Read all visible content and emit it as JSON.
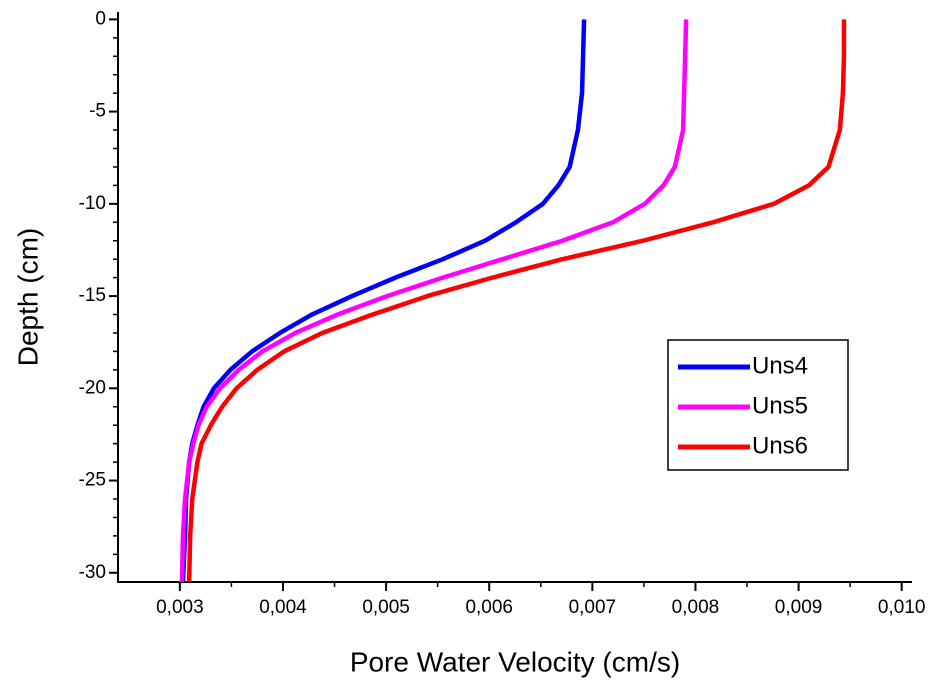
{
  "chart_data": {
    "type": "line",
    "x_label": "Pore Water Velocity (cm/s)",
    "y_label": "Depth (cm)",
    "xlim": [
      0.0024,
      0.0101
    ],
    "ylim": [
      -30.5,
      0.4
    ],
    "xticks": [
      {
        "value": 0.003,
        "label": "0,003"
      },
      {
        "value": 0.004,
        "label": "0,004"
      },
      {
        "value": 0.005,
        "label": "0,005"
      },
      {
        "value": 0.006,
        "label": "0,006"
      },
      {
        "value": 0.007,
        "label": "0,007"
      },
      {
        "value": 0.008,
        "label": "0,008"
      },
      {
        "value": 0.009,
        "label": "0,009"
      },
      {
        "value": 0.01,
        "label": "0,010"
      }
    ],
    "yticks": [
      0,
      -5,
      -10,
      -15,
      -20,
      -25,
      -30
    ],
    "legend": "lower right",
    "y": [
      0,
      -2,
      -4,
      -6,
      -8,
      -9,
      -10,
      -11,
      -12,
      -13,
      -14,
      -15,
      -16,
      -17,
      -18,
      -19,
      -20,
      -21,
      -22,
      -23,
      -24,
      -26,
      -28,
      -30.5
    ],
    "series": [
      {
        "name": "Uns4",
        "color": "#0000ff",
        "values": [
          0.00692,
          0.00691,
          0.0069,
          0.00686,
          0.00678,
          0.00667,
          0.00652,
          0.00626,
          0.00596,
          0.00555,
          0.00509,
          0.00467,
          0.00428,
          0.00397,
          0.0037,
          0.00349,
          0.00333,
          0.00323,
          0.00317,
          0.00312,
          0.00309,
          0.00306,
          0.00305,
          0.00303
        ]
      },
      {
        "name": "Uns5",
        "color": "#ff00ff",
        "values": [
          0.00791,
          0.0079,
          0.00789,
          0.00788,
          0.0078,
          0.00769,
          0.00751,
          0.0072,
          0.00671,
          0.00613,
          0.00555,
          0.00501,
          0.00453,
          0.00412,
          0.0038,
          0.00357,
          0.00339,
          0.00326,
          0.00318,
          0.00313,
          0.00309,
          0.00305,
          0.00303,
          0.00302
        ]
      },
      {
        "name": "Uns6",
        "color": "#ff0000",
        "values": [
          0.00944,
          0.00944,
          0.00943,
          0.0094,
          0.00929,
          0.0091,
          0.00876,
          0.00817,
          0.00749,
          0.00671,
          0.00603,
          0.0054,
          0.00487,
          0.00438,
          0.00401,
          0.00375,
          0.00355,
          0.00341,
          0.0033,
          0.00321,
          0.00317,
          0.00312,
          0.0031,
          0.00309
        ]
      }
    ]
  }
}
